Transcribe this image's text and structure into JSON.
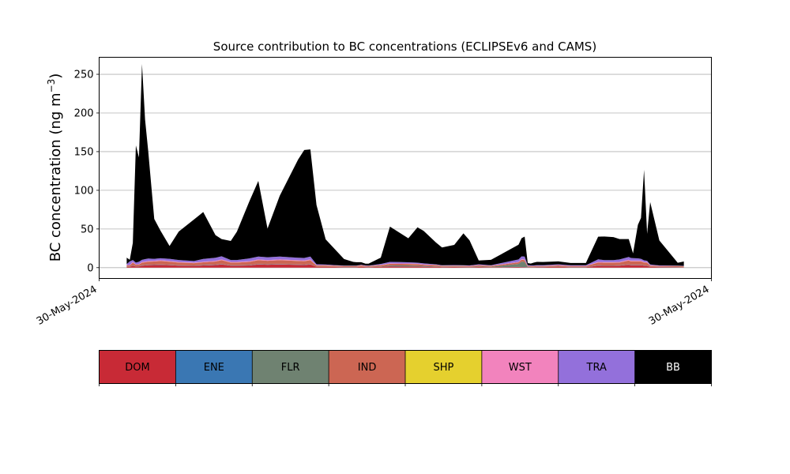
{
  "chart_data": {
    "type": "area",
    "title": "Source contribution to BC concentrations (ECLIPSEv6 and CAMS)",
    "ylabel": "BC concentration (ng m",
    "ylabel_sup": "−3",
    "ylabel_close": ")",
    "xlabel": "",
    "xlim": [
      0,
      100
    ],
    "ylim": [
      -14,
      272
    ],
    "yticks": [
      0,
      50,
      100,
      150,
      200,
      250
    ],
    "xtick_labels": [
      "30-May-2024",
      "30-May-2024"
    ],
    "grid": "y",
    "stacked": true,
    "x": [
      4.5,
      5.0,
      5.5,
      6.0,
      6.5,
      7.0,
      7.5,
      8.0,
      9.0,
      10.0,
      11.5,
      13.0,
      15.5,
      17.0,
      19.0,
      20.0,
      21.5,
      22.5,
      24.5,
      26.0,
      27.5,
      29.5,
      32.5,
      33.5,
      34.5,
      35.5,
      37.0,
      40.0,
      41.5,
      42.0,
      42.8,
      43.5,
      44.0,
      46.0,
      47.5,
      50.5,
      52.0,
      53.0,
      55.0,
      56.0,
      58.0,
      59.5,
      60.5,
      62.0,
      64.0,
      68.5,
      69.0,
      69.5,
      70.0,
      70.5,
      71.0,
      71.5,
      72.5,
      75.0,
      77.0,
      79.5,
      81.5,
      82.5,
      84.0,
      85.0,
      86.5,
      86.8,
      87.2,
      88.0,
      88.5,
      89.0,
      89.5,
      90.0,
      91.5,
      94.5,
      95.5
    ],
    "series": [
      {
        "name": "DOM",
        "color": "#c82a36",
        "values": [
          1.0,
          0.9,
          2.5,
          1.4,
          1.6,
          2.6,
          2.9,
          3.2,
          3.4,
          3.6,
          3.2,
          2.6,
          2.3,
          2.9,
          3.4,
          4.1,
          2.6,
          2.6,
          2.9,
          4.1,
          3.8,
          4.1,
          3.6,
          3.4,
          4.1,
          1.0,
          1.0,
          0.6,
          0.6,
          0.6,
          1.0,
          0.7,
          0.6,
          1.0,
          1.7,
          1.4,
          1.3,
          1.2,
          1.0,
          0.7,
          0.8,
          0.7,
          0.5,
          0.8,
          0.5,
          0.8,
          0.7,
          0.7,
          0.4,
          0.4,
          0.4,
          0.7,
          0.7,
          1.0,
          0.6,
          0.6,
          2.6,
          2.3,
          2.3,
          2.6,
          3.7,
          3.1,
          3.1,
          3.1,
          3.1,
          2.6,
          2.3,
          0.9,
          0.7,
          0.6,
          0.4
        ]
      },
      {
        "name": "ENE",
        "color": "#3a77b3",
        "values": [
          0.2,
          0.2,
          0.3,
          0.2,
          0.2,
          0.3,
          0.3,
          0.3,
          0.3,
          0.3,
          0.3,
          0.3,
          0.3,
          0.3,
          0.3,
          0.3,
          0.3,
          0.3,
          0.3,
          0.3,
          0.3,
          0.3,
          0.3,
          0.3,
          0.3,
          0.1,
          0.1,
          0.1,
          0.1,
          0.1,
          0.1,
          0.1,
          0.1,
          0.1,
          0.2,
          0.2,
          0.2,
          0.2,
          0.1,
          0.1,
          0.1,
          0.1,
          0.1,
          0.1,
          0.1,
          0.1,
          0.1,
          0.1,
          0.1,
          0.1,
          0.1,
          0.1,
          0.1,
          0.1,
          0.1,
          0.1,
          0.3,
          0.3,
          0.3,
          0.3,
          0.3,
          0.3,
          0.3,
          0.3,
          0.3,
          0.3,
          0.3,
          0.1,
          0.1,
          0.1,
          0.1
        ]
      },
      {
        "name": "FLR",
        "color": "#6f8271",
        "values": [
          0.1,
          0.1,
          0.2,
          0.1,
          0.1,
          0.2,
          0.2,
          0.2,
          0.2,
          0.2,
          0.2,
          0.2,
          0.2,
          0.2,
          0.2,
          0.2,
          0.2,
          0.2,
          0.2,
          0.2,
          0.2,
          0.2,
          0.2,
          0.2,
          0.2,
          0.1,
          0.1,
          0.1,
          0.1,
          0.1,
          0.1,
          0.1,
          0.1,
          0.5,
          1.0,
          1.2,
          1.0,
          0.8,
          0.5,
          0.3,
          0.3,
          0.3,
          0.3,
          0.5,
          0.5,
          4.0,
          7.0,
          6.5,
          0.5,
          0.2,
          0.2,
          0.2,
          0.2,
          0.2,
          0.2,
          0.2,
          0.2,
          0.2,
          0.2,
          0.2,
          0.2,
          0.2,
          0.2,
          0.2,
          0.2,
          0.2,
          0.2,
          0.1,
          0.1,
          0.1,
          0.1
        ]
      },
      {
        "name": "IND",
        "color": "#cc6653",
        "values": [
          1.5,
          1.5,
          3.5,
          2.0,
          2.0,
          3.5,
          3.5,
          4.0,
          4.0,
          4.5,
          4.0,
          3.5,
          3.0,
          3.5,
          4.0,
          5.0,
          3.5,
          3.5,
          4.0,
          5.0,
          4.5,
          5.0,
          4.5,
          4.5,
          5.0,
          1.5,
          1.5,
          1.0,
          1.0,
          1.0,
          1.5,
          1.0,
          1.0,
          1.5,
          2.0,
          2.0,
          2.0,
          1.5,
          1.5,
          1.0,
          1.0,
          1.0,
          1.0,
          1.5,
          1.0,
          2.0,
          2.5,
          2.5,
          1.0,
          1.0,
          1.0,
          1.0,
          1.0,
          1.5,
          1.0,
          1.0,
          3.5,
          3.5,
          3.5,
          3.5,
          5.0,
          4.5,
          4.5,
          4.5,
          4.5,
          3.5,
          3.5,
          1.5,
          1.0,
          1.0,
          1.0
        ]
      },
      {
        "name": "SHP",
        "color": "#e5d02e",
        "values": [
          0.1,
          0.1,
          0.1,
          0.1,
          0.1,
          0.1,
          0.1,
          0.1,
          0.1,
          0.1,
          0.1,
          0.1,
          0.1,
          0.1,
          0.1,
          0.1,
          0.1,
          0.1,
          0.1,
          0.1,
          0.1,
          0.1,
          0.1,
          0.1,
          0.1,
          0.1,
          0.1,
          0.1,
          0.1,
          0.1,
          0.1,
          0.1,
          0.1,
          0.1,
          0.1,
          0.1,
          0.1,
          0.1,
          0.1,
          0.1,
          0.1,
          0.1,
          0.1,
          0.1,
          0.1,
          0.1,
          0.1,
          0.1,
          0.1,
          0.1,
          0.1,
          0.1,
          0.1,
          0.1,
          0.1,
          0.1,
          0.1,
          0.1,
          0.1,
          0.1,
          0.1,
          0.1,
          0.1,
          0.1,
          0.1,
          0.1,
          0.1,
          0.1,
          0.1,
          0.1,
          0.1
        ]
      },
      {
        "name": "WST",
        "color": "#f283bd",
        "values": [
          0.5,
          0.5,
          0.8,
          0.5,
          0.5,
          0.8,
          0.8,
          0.8,
          0.8,
          0.9,
          0.8,
          0.7,
          0.6,
          0.7,
          0.8,
          1.0,
          0.7,
          0.7,
          0.8,
          1.0,
          0.9,
          1.0,
          0.9,
          0.9,
          1.0,
          0.4,
          0.4,
          0.3,
          0.3,
          0.3,
          0.4,
          0.3,
          0.3,
          0.4,
          0.5,
          0.5,
          0.5,
          0.4,
          0.4,
          0.3,
          0.3,
          0.3,
          0.3,
          0.4,
          0.3,
          0.5,
          0.6,
          0.6,
          0.3,
          0.3,
          0.3,
          0.3,
          0.3,
          0.4,
          0.3,
          0.3,
          0.8,
          0.8,
          0.8,
          0.8,
          1.0,
          0.9,
          0.9,
          0.9,
          0.9,
          0.8,
          0.8,
          0.4,
          0.3,
          0.3,
          0.3
        ]
      },
      {
        "name": "TRA",
        "color": "#9370db",
        "values": [
          1.2,
          4.8,
          2.5,
          2.2,
          3.2,
          2.6,
          3.2,
          3.2,
          2.6,
          2.6,
          2.8,
          2.5,
          2.1,
          3.6,
          4.0,
          4.0,
          2.5,
          2.5,
          3.6,
          3.6,
          3.6,
          3.6,
          3.2,
          3.2,
          3.6,
          1.2,
          0.8,
          0.4,
          0.4,
          0.4,
          0.5,
          0.5,
          0.4,
          1.2,
          2.0,
          1.6,
          1.3,
          1.3,
          0.7,
          0.6,
          0.8,
          0.6,
          0.6,
          0.8,
          0.6,
          3.2,
          3.6,
          3.9,
          0.8,
          0.8,
          0.8,
          0.8,
          0.8,
          1.0,
          0.8,
          0.8,
          3.3,
          2.5,
          2.5,
          3.2,
          3.6,
          3.6,
          3.2,
          2.9,
          2.3,
          2.0,
          1.7,
          1.0,
          0.6,
          0.4,
          0.3
        ]
      },
      {
        "name": "BB",
        "color": "#000000",
        "values": [
          8.4,
          2.0,
          22.1,
          151.5,
          134.8,
          253.2,
          180.6,
          140.2,
          51.6,
          35.8,
          16.6,
          36.8,
          53.8,
          60.6,
          29.2,
          22.3,
          24.6,
          36.6,
          73.2,
          97.8,
          37.1,
          78.7,
          127.0,
          139.5,
          138.6,
          76.6,
          32.5,
          8.5,
          4.9,
          4.5,
          3.4,
          2.3,
          2.5,
          8.2,
          45.5,
          31.0,
          45.8,
          42.0,
          28.3,
          23.0,
          26.0,
          41.3,
          32.4,
          5.1,
          7.0,
          18.9,
          23.5,
          25.7,
          2.7,
          2.4,
          3.6,
          4.3,
          4.1,
          3.8,
          3.0,
          3.0,
          29.2,
          30.6,
          29.8,
          26.3,
          23.1,
          16.6,
          6.1,
          43.5,
          52.9,
          116.9,
          34.8,
          80.7,
          32.3,
          3.7,
          5.7
        ]
      }
    ]
  },
  "legend": {
    "items": [
      {
        "name": "DOM",
        "color": "#c82a36",
        "text_color": "#000000"
      },
      {
        "name": "ENE",
        "color": "#3a77b3",
        "text_color": "#000000"
      },
      {
        "name": "FLR",
        "color": "#6f8271",
        "text_color": "#000000"
      },
      {
        "name": "IND",
        "color": "#cc6653",
        "text_color": "#000000"
      },
      {
        "name": "SHP",
        "color": "#e5d02e",
        "text_color": "#000000"
      },
      {
        "name": "WST",
        "color": "#f283bd",
        "text_color": "#000000"
      },
      {
        "name": "TRA",
        "color": "#9370db",
        "text_color": "#000000"
      },
      {
        "name": "BB",
        "color": "#000000",
        "text_color": "#ffffff"
      }
    ]
  }
}
